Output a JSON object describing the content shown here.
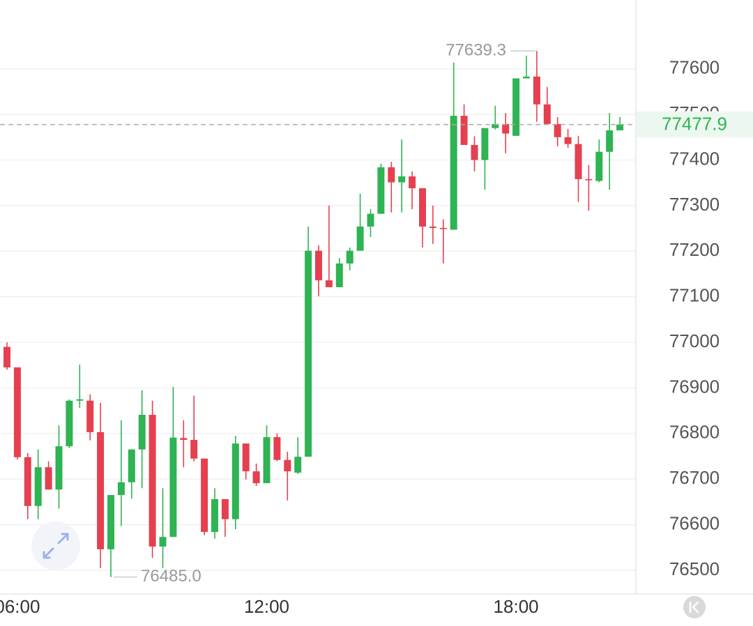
{
  "chart_data": {
    "type": "candlestick",
    "categories": [
      null,
      "06:00",
      null,
      null,
      null,
      null,
      null,
      null,
      null,
      null,
      null,
      null,
      null,
      null,
      null,
      null,
      null,
      null,
      null,
      null,
      null,
      null,
      null,
      null,
      null,
      "12:00",
      null,
      null,
      null,
      null,
      null,
      null,
      null,
      null,
      null,
      null,
      null,
      null,
      null,
      null,
      null,
      null,
      null,
      null,
      null,
      null,
      null,
      null,
      null,
      "18:00",
      null,
      null,
      null,
      null,
      null,
      null,
      null,
      null,
      null,
      null
    ],
    "series": [
      {
        "up_color": "#2fb353",
        "down_color": "#e5404f",
        "open": [
          76990,
          76945,
          76748,
          76641,
          76726,
          76677,
          76772,
          76872,
          76872,
          76803,
          76546,
          76665,
          76693,
          76765,
          76841,
          76552,
          76573,
          76790,
          76786,
          76745,
          76584,
          76656,
          76612,
          76778,
          76717,
          76691,
          76792,
          76742,
          76714,
          76749,
          77201,
          77136,
          77121,
          77173,
          77201,
          77254,
          77282,
          77384,
          77351,
          77364,
          77338,
          77254,
          77251,
          77247,
          77497,
          77433,
          77400,
          77470,
          77479,
          77453,
          77579,
          77583,
          77522,
          77479,
          77450,
          77435,
          77358,
          77354,
          77418,
          77465
        ],
        "high": [
          77000,
          76945,
          76757,
          76765,
          76739,
          76818,
          76875,
          76951,
          76886,
          76867,
          76665,
          76829,
          76765,
          76895,
          76872,
          76680,
          76902,
          76829,
          76883,
          76745,
          76680,
          76656,
          76795,
          76778,
          76734,
          76818,
          76800,
          76760,
          76792,
          77254,
          77213,
          77300,
          77185,
          77208,
          77326,
          77292,
          77392,
          77396,
          77445,
          77375,
          77338,
          77300,
          77270,
          77614,
          77522,
          77452,
          77470,
          77519,
          77503,
          77579,
          77629,
          77639.3,
          77560,
          77494,
          77468,
          77453,
          77389,
          77445,
          77503,
          77494
        ],
        "low": [
          76940,
          76743,
          76612,
          76612,
          76677,
          76635,
          76768,
          76856,
          76785,
          76505,
          76485,
          76597,
          76657,
          76680,
          76527,
          76505,
          76573,
          76726,
          76739,
          76577,
          76569,
          76573,
          76590,
          76699,
          76685,
          76691,
          76739,
          76653,
          76711,
          76749,
          77101,
          77121,
          77121,
          77158,
          77201,
          77231,
          77282,
          77285,
          77285,
          77292,
          77208,
          77216,
          77173,
          77247,
          77433,
          77375,
          77335,
          77467,
          77415,
          77453,
          77579,
          77484,
          77479,
          77430,
          77427,
          77308,
          77289,
          77351,
          77335,
          77465
        ],
        "close": [
          76945,
          76748,
          76641,
          76726,
          76677,
          76772,
          76872,
          76875,
          76803,
          76546,
          76665,
          76693,
          76765,
          76841,
          76552,
          76573,
          76791,
          76786,
          76745,
          76584,
          76656,
          76612,
          76778,
          76717,
          76691,
          76792,
          76742,
          76717,
          76749,
          77201,
          77136,
          77121,
          77173,
          77201,
          77254,
          77282,
          77384,
          77351,
          77364,
          77338,
          77254,
          77251,
          77249,
          77497,
          77433,
          77400,
          77470,
          77479,
          77458,
          77579,
          77583,
          77522,
          77479,
          77450,
          77435,
          77358,
          77356,
          77418,
          77465,
          77477.9
        ]
      }
    ],
    "ylim": [
      76448,
      77751
    ],
    "yticks": [
      76500,
      76600,
      76700,
      76800,
      76900,
      77000,
      77100,
      77200,
      77300,
      77400,
      77500,
      77600
    ],
    "grid": true,
    "last_price": 77477.9,
    "high_label": 77639.3,
    "low_label": {
      "value": 76485,
      "label": "76485.0"
    }
  }
}
